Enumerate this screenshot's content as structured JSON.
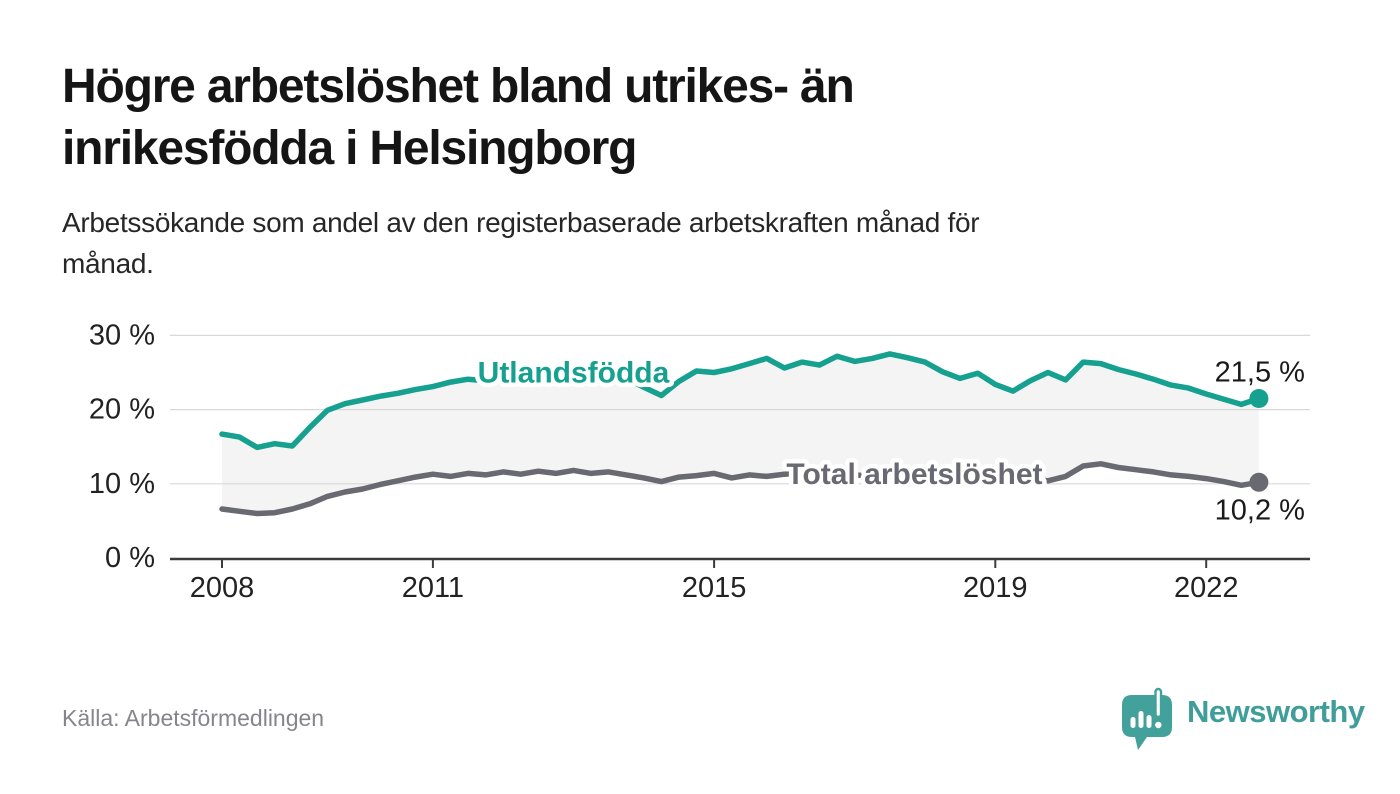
{
  "page": {
    "title": "Högre arbetslöshet bland utrikes- än\ninrikesfödda i Helsingborg",
    "subtitle": "Arbetssökande som andel av den registerbaserade arbetskraften månad för\nmånad.",
    "source": "Källa: Arbetsförmedlingen",
    "brand": "Newsworthy"
  },
  "colors": {
    "accent_teal": "#16a08f",
    "series_gray": "#696971",
    "band_fill": "#f4f4f4",
    "grid": "#d8d8d8",
    "axis": "#3c3c3c",
    "tick_text": "#222222",
    "end_label_text": "#1a1a1a",
    "logo_teal": "#43a19b",
    "halo": "#ffffff"
  },
  "chart_data": {
    "type": "line",
    "title": "Högre arbetslöshet bland utrikes- än inrikesfödda i Helsingborg",
    "subtitle": "Arbetssökande som andel av den registerbaserade arbetskraften månad för månad.",
    "source": "Källa: Arbetsförmedlingen",
    "grid": "horizontal-only",
    "legend": "inline-series-labels",
    "ylim": [
      0,
      30
    ],
    "xlim": [
      2007.3,
      2023.5
    ],
    "yticks": [
      0,
      10,
      20,
      30
    ],
    "ytick_labels": [
      "0 %",
      "10 %",
      "20 %",
      "30 %"
    ],
    "xticks": [
      2008,
      2011,
      2015,
      2019,
      2022
    ],
    "xtick_labels": [
      "2008",
      "2011",
      "2015",
      "2019",
      "2022"
    ],
    "x_years": [
      2008,
      2008.25,
      2008.5,
      2008.75,
      2009,
      2009.25,
      2009.5,
      2009.75,
      2010,
      2010.25,
      2010.5,
      2010.75,
      2011,
      2011.25,
      2011.5,
      2011.75,
      2012,
      2012.25,
      2012.5,
      2012.75,
      2013,
      2013.25,
      2013.5,
      2013.75,
      2014,
      2014.25,
      2014.5,
      2014.75,
      2015,
      2015.25,
      2015.5,
      2015.75,
      2016,
      2016.25,
      2016.5,
      2016.75,
      2017,
      2017.25,
      2017.5,
      2017.75,
      2018,
      2018.25,
      2018.5,
      2018.75,
      2019,
      2019.25,
      2019.5,
      2019.75,
      2020,
      2020.25,
      2020.5,
      2020.75,
      2021,
      2021.25,
      2021.5,
      2021.75,
      2022,
      2022.25,
      2022.5,
      2022.75
    ],
    "series": [
      {
        "label": "Utlandsfödda",
        "end_label": "21,5 %",
        "end_value": 21.5,
        "color": "#16a08f",
        "values": [
          16.7,
          16.3,
          14.9,
          15.4,
          15.1,
          17.6,
          19.9,
          20.8,
          21.3,
          21.8,
          22.2,
          22.7,
          23.1,
          23.7,
          24.1,
          23.9,
          24.4,
          24.2,
          24.6,
          24.5,
          24.8,
          25.1,
          24.9,
          24.2,
          23.0,
          21.9,
          23.8,
          25.2,
          25.0,
          25.5,
          26.2,
          26.9,
          25.6,
          26.4,
          26.0,
          27.2,
          26.5,
          26.9,
          27.5,
          27.0,
          26.4,
          25.1,
          24.2,
          24.9,
          23.4,
          22.5,
          23.9,
          25.0,
          24.0,
          26.4,
          26.2,
          25.4,
          24.8,
          24.1,
          23.3,
          22.9,
          22.1,
          21.4,
          20.7,
          21.5
        ]
      },
      {
        "label": "Total arbetslöshet",
        "end_label": "10,2 %",
        "end_value": 10.2,
        "color": "#696971",
        "values": [
          6.6,
          6.3,
          6.0,
          6.1,
          6.6,
          7.3,
          8.3,
          8.9,
          9.3,
          9.9,
          10.4,
          10.9,
          11.3,
          11.0,
          11.4,
          11.2,
          11.6,
          11.3,
          11.7,
          11.4,
          11.8,
          11.4,
          11.6,
          11.2,
          10.8,
          10.3,
          10.9,
          11.1,
          11.4,
          10.8,
          11.2,
          11.0,
          11.3,
          11.5,
          11.2,
          11.4,
          11.2,
          11.0,
          11.3,
          10.9,
          10.7,
          10.5,
          10.8,
          10.5,
          10.3,
          10.4,
          10.7,
          10.4,
          11.0,
          12.4,
          12.7,
          12.2,
          11.9,
          11.6,
          11.2,
          11.0,
          10.7,
          10.3,
          9.8,
          10.2
        ]
      }
    ]
  }
}
